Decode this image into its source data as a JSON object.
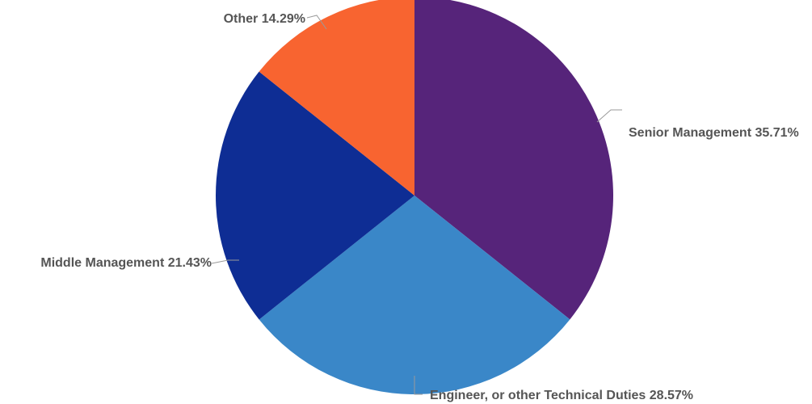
{
  "chart_data": {
    "type": "pie",
    "title": "",
    "slices": [
      {
        "label": "Senior Management",
        "value": 35.71,
        "display": "35.71%",
        "color": "#56247a"
      },
      {
        "label": "Engineer, or other Technical Duties",
        "value": 28.57,
        "display": "28.57%",
        "color": "#3a87c8"
      },
      {
        "label": "Middle Management",
        "value": 21.43,
        "display": "21.43%",
        "color": "#0e2d94"
      },
      {
        "label": "Other",
        "value": 14.29,
        "display": "14.29%",
        "color": "#f86430"
      }
    ],
    "start_angle_deg": 0,
    "direction": "clockwise"
  }
}
